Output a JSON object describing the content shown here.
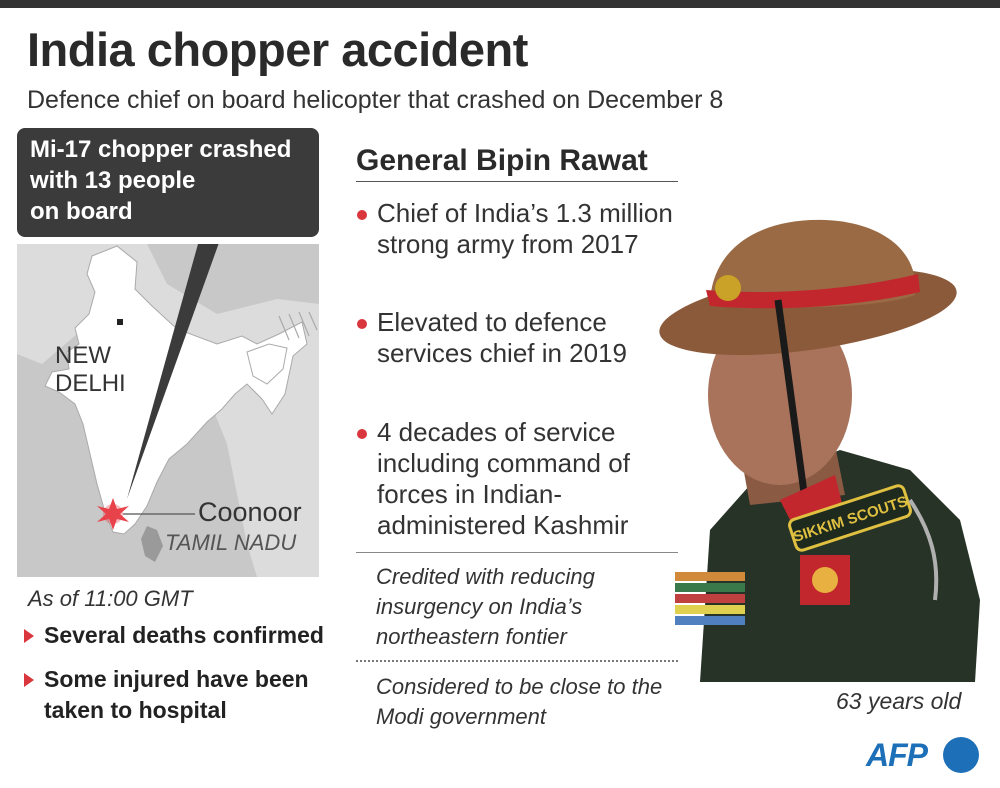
{
  "header": {
    "title": "India chopper accident",
    "subtitle": "Defence chief on board helicopter that crashed on December 8"
  },
  "callout": {
    "line1": "Mi-17 chopper crashed",
    "line2": "with 13 people",
    "line3": "on board"
  },
  "map": {
    "capital_line1": "NEW",
    "capital_line2": "DELHI",
    "crash_site": "Coonoor",
    "state": "TAMIL NADU",
    "crash_marker_color": "#e8424a"
  },
  "status": {
    "as_of": "As of 11:00 GMT",
    "items": [
      "Several deaths confirmed",
      "Some injured have been taken to hospital"
    ]
  },
  "profile": {
    "name": "General Bipin Rawat",
    "facts": [
      "Chief of India’s 1.3 million strong army from 2017",
      "Elevated to defence services chief in 2019",
      "4 decades of service including command of forces in Indian-administered Kashmir"
    ],
    "notes": [
      "Credited with reducing insurgency on India’s northeastern fontier",
      "Considered to be close to the Modi government"
    ],
    "age": "63 years old",
    "badge": "SIKKIM SCOUTS"
  },
  "credit": {
    "logo": "AFP"
  },
  "colors": {
    "accent": "#d9363e",
    "callout_bg": "#3b3b3b",
    "map_land": "#ffffff",
    "map_sea": "#c8c8c8",
    "afp_blue": "#1d6fb8"
  }
}
